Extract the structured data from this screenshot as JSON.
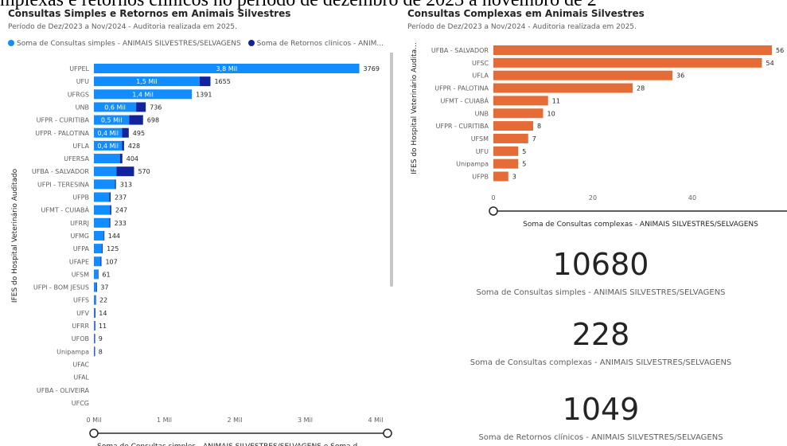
{
  "banner_text": "mplexas e retornos clínicos no período de dezembro de 2023 a novembro de 2",
  "colors": {
    "simple": "#118DFF",
    "retorno": "#12239E",
    "complex": "#E66C37"
  },
  "chart_data": [
    {
      "type": "bar",
      "orientation": "horizontal",
      "stacked": true,
      "title": "Consultas Simples e Retornos em Animais Silvestres",
      "subtitle": "Período de Dez/2023 a Nov/2024 - Auditoria realizada em 2025.",
      "legend": [
        "Soma de Consultas simples - ANIMAIS SILVESTRES/SELVAGENS",
        "Soma de Retornos clínicos - ANIM..."
      ],
      "legend_position": "top-left",
      "ylabel": "IFES do Hospital Veterinário Auditado",
      "xlabel": "Soma de Consultas simples - ANIMAIS SILVESTRES/SELVAGENS e Soma d...",
      "xlim": [
        0,
        4000
      ],
      "x_ticks": [
        "0 Mil",
        "1 Mil",
        "2 Mil",
        "3 Mil",
        "4 Mil"
      ],
      "x_tick_values": [
        0,
        1000,
        2000,
        3000,
        4000
      ],
      "grid": false,
      "categories": [
        "UFPEL",
        "UFU",
        "UFRGS",
        "UNB",
        "UFPR - CURITIBA",
        "UFPR - PALOTINA",
        "UFLA",
        "UFERSA",
        "UFBA - SALVADOR",
        "UFPI - TERESINA",
        "UFPB",
        "UFMT - CUIABÁ",
        "UFRRJ",
        "UFMG",
        "UFPA",
        "UFAPE",
        "UFSM",
        "UFPI - BOM JESUS",
        "UFFS",
        "UFV",
        "UFRR",
        "UFOB",
        "Unipampa",
        "UFAC",
        "UFAL",
        "UFBA - OLIVEIRA",
        "UFCG"
      ],
      "series": [
        {
          "name": "Soma de Consultas simples - ANIMAIS SILVESTRES/SELVAGENS",
          "values": [
            3769,
            1500,
            1391,
            600,
            500,
            400,
            400,
            370,
            320,
            300,
            220,
            230,
            220,
            140,
            115,
            95,
            55,
            35,
            20,
            13,
            10,
            8,
            7,
            0,
            0,
            0,
            0
          ]
        },
        {
          "name": "Soma de Retornos clínicos - ANIM...",
          "values": [
            0,
            155,
            0,
            136,
            198,
            95,
            28,
            34,
            250,
            13,
            17,
            17,
            13,
            4,
            10,
            12,
            6,
            2,
            2,
            1,
            1,
            1,
            1,
            0,
            0,
            0,
            0
          ]
        }
      ],
      "totals": [
        "3769",
        "1655",
        "1391",
        "736",
        "698",
        "495",
        "428",
        "404",
        "570",
        "313",
        "237",
        "247",
        "233",
        "144",
        "125",
        "107",
        "61",
        "37",
        "22",
        "14",
        "11",
        "9",
        "8",
        "",
        "",
        "",
        ""
      ],
      "inside_labels": [
        "3,8 Mil",
        "1,5 Mil",
        "1,4 Mil",
        "0,6 Mil",
        "0,5 Mil",
        "0,4 Mil",
        "0,4 Mil",
        "",
        "",
        "",
        "",
        "",
        "",
        "",
        "",
        "",
        "",
        "",
        "",
        "",
        "",
        "",
        "",
        "",
        "",
        "",
        ""
      ]
    },
    {
      "type": "bar",
      "orientation": "horizontal",
      "title": "Consultas Complexas em Animais Silvestres",
      "subtitle": "Período de Dez/2023 a Nov/2024 - Auditoria realizada em 2025.",
      "ylabel": "IFES do Hospital Veterinário Audita...",
      "xlabel": "Soma de Consultas complexas - ANIMAIS SILVESTRES/SELVAGENS",
      "xlim": [
        0,
        56
      ],
      "x_ticks": [
        "0",
        "20",
        "40"
      ],
      "x_tick_values": [
        0,
        20,
        40
      ],
      "grid": false,
      "categories": [
        "UFBA - SALVADOR",
        "UFSC",
        "UFLA",
        "UFPR - PALOTINA",
        "UFMT - CUIABÁ",
        "UNB",
        "UFPR - CURITIBA",
        "UFSM",
        "UFU",
        "Unipampa",
        "UFPB"
      ],
      "series": [
        {
          "name": "Soma de Consultas complexas - ANIMAIS SILVESTRES/SELVAGENS",
          "values": [
            56,
            54,
            36,
            28,
            11,
            10,
            8,
            7,
            5,
            5,
            3
          ]
        }
      ],
      "value_labels": [
        "56",
        "54",
        "36",
        "28",
        "11",
        "10",
        "8",
        "7",
        "5",
        "5",
        "3"
      ]
    }
  ],
  "kpis": [
    {
      "value": "10680",
      "label": "Soma de Consultas simples - ANIMAIS SILVESTRES/SELVAGENS"
    },
    {
      "value": "228",
      "label": "Soma de Consultas complexas - ANIMAIS SILVESTRES/SELVAGENS"
    },
    {
      "value": "1049",
      "label": "Soma de Retornos clínicos - ANIMAIS SILVESTRES/SELVAGENS"
    }
  ]
}
